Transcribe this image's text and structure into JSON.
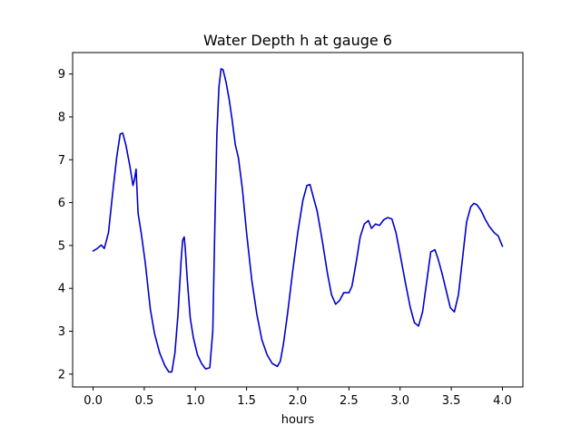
{
  "chart_data": {
    "type": "line",
    "title": "Water Depth h at gauge 6",
    "xlabel": "hours",
    "ylabel": "",
    "xlim": [
      -0.2,
      4.2
    ],
    "ylim": [
      1.7,
      9.5
    ],
    "xticks": [
      0.0,
      0.5,
      1.0,
      1.5,
      2.0,
      2.5,
      3.0,
      3.5,
      4.0
    ],
    "xtick_labels": [
      "0.0",
      "0.5",
      "1.0",
      "1.5",
      "2.0",
      "2.5",
      "3.0",
      "3.5",
      "4.0"
    ],
    "yticks": [
      2,
      3,
      4,
      5,
      6,
      7,
      8,
      9
    ],
    "ytick_labels": [
      "2",
      "3",
      "4",
      "5",
      "6",
      "7",
      "8",
      "9"
    ],
    "grid": false,
    "series": [
      {
        "color": "#0000cc",
        "x": [
          0.0,
          0.04,
          0.08,
          0.11,
          0.15,
          0.19,
          0.23,
          0.265,
          0.29,
          0.32,
          0.36,
          0.39,
          0.405,
          0.42,
          0.44,
          0.47,
          0.51,
          0.56,
          0.6,
          0.65,
          0.7,
          0.74,
          0.77,
          0.8,
          0.83,
          0.86,
          0.875,
          0.89,
          0.9,
          0.92,
          0.95,
          0.98,
          1.02,
          1.06,
          1.1,
          1.14,
          1.17,
          1.19,
          1.21,
          1.23,
          1.25,
          1.27,
          1.285,
          1.3,
          1.33,
          1.36,
          1.39,
          1.42,
          1.46,
          1.5,
          1.55,
          1.6,
          1.65,
          1.7,
          1.75,
          1.8,
          1.83,
          1.86,
          1.9,
          1.95,
          2.0,
          2.05,
          2.09,
          2.12,
          2.15,
          2.19,
          2.24,
          2.29,
          2.33,
          2.37,
          2.41,
          2.45,
          2.5,
          2.53,
          2.57,
          2.61,
          2.65,
          2.69,
          2.72,
          2.76,
          2.8,
          2.84,
          2.88,
          2.92,
          2.96,
          3.0,
          3.05,
          3.1,
          3.14,
          3.18,
          3.22,
          3.26,
          3.3,
          3.34,
          3.37,
          3.41,
          3.45,
          3.49,
          3.53,
          3.57,
          3.61,
          3.65,
          3.69,
          3.72,
          3.75,
          3.79,
          3.83,
          3.87,
          3.92,
          3.96,
          4.0
        ],
        "y": [
          4.87,
          4.93,
          5.01,
          4.93,
          5.3,
          6.2,
          7.05,
          7.6,
          7.62,
          7.35,
          6.85,
          6.4,
          6.55,
          6.78,
          5.75,
          5.3,
          4.6,
          3.5,
          2.95,
          2.5,
          2.2,
          2.05,
          2.05,
          2.5,
          3.4,
          4.65,
          5.12,
          5.2,
          4.95,
          4.2,
          3.3,
          2.85,
          2.45,
          2.25,
          2.12,
          2.15,
          3.0,
          5.5,
          7.6,
          8.7,
          9.12,
          9.1,
          8.95,
          8.8,
          8.4,
          7.9,
          7.35,
          7.05,
          6.3,
          5.3,
          4.2,
          3.4,
          2.8,
          2.45,
          2.25,
          2.18,
          2.3,
          2.7,
          3.4,
          4.4,
          5.3,
          6.05,
          6.4,
          6.42,
          6.15,
          5.8,
          5.1,
          4.35,
          3.85,
          3.63,
          3.72,
          3.9,
          3.9,
          4.05,
          4.6,
          5.2,
          5.5,
          5.58,
          5.4,
          5.5,
          5.47,
          5.6,
          5.65,
          5.62,
          5.3,
          4.8,
          4.15,
          3.55,
          3.2,
          3.12,
          3.45,
          4.15,
          4.85,
          4.9,
          4.7,
          4.35,
          3.95,
          3.55,
          3.45,
          3.85,
          4.7,
          5.55,
          5.9,
          5.98,
          5.95,
          5.82,
          5.62,
          5.45,
          5.3,
          5.22,
          4.98
        ]
      }
    ]
  }
}
